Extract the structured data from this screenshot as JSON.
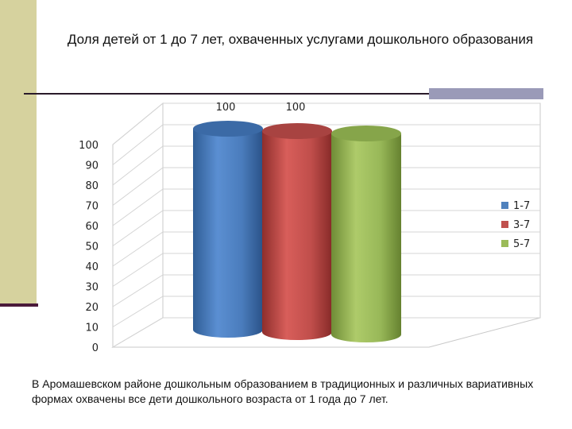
{
  "title": "Доля детей от 1 до 7 лет, охваченных услугами дошкольного образования",
  "footer_text": "В Аромашевском районе дошкольным образованием в традиционных и различных вариативных формах охвачены все дети дошкольного возраста от 1 года до 7 лет.",
  "colors": {
    "blue": "#4f81bd",
    "red": "#c0504d",
    "green": "#9bbb59"
  },
  "chart_data": {
    "type": "bar",
    "style": "3d-cylinder",
    "categories": [
      ""
    ],
    "series": [
      {
        "name": "1-7",
        "values": [
          100
        ],
        "color": "#4f81bd"
      },
      {
        "name": "3-7",
        "values": [
          100
        ],
        "color": "#c0504d"
      },
      {
        "name": "5-7",
        "values": [
          100
        ],
        "color": "#9bbb59"
      }
    ],
    "data_labels": [
      "100",
      "100"
    ],
    "title": "Доля детей от 1 до 7 лет, охваченных услугами дошкольного образования",
    "xlabel": "",
    "ylabel": "",
    "ylim": [
      0,
      100
    ],
    "y_ticks": [
      "0",
      "10",
      "20",
      "30",
      "40",
      "50",
      "60",
      "70",
      "80",
      "90",
      "100"
    ],
    "grid": true,
    "legend": "right"
  }
}
